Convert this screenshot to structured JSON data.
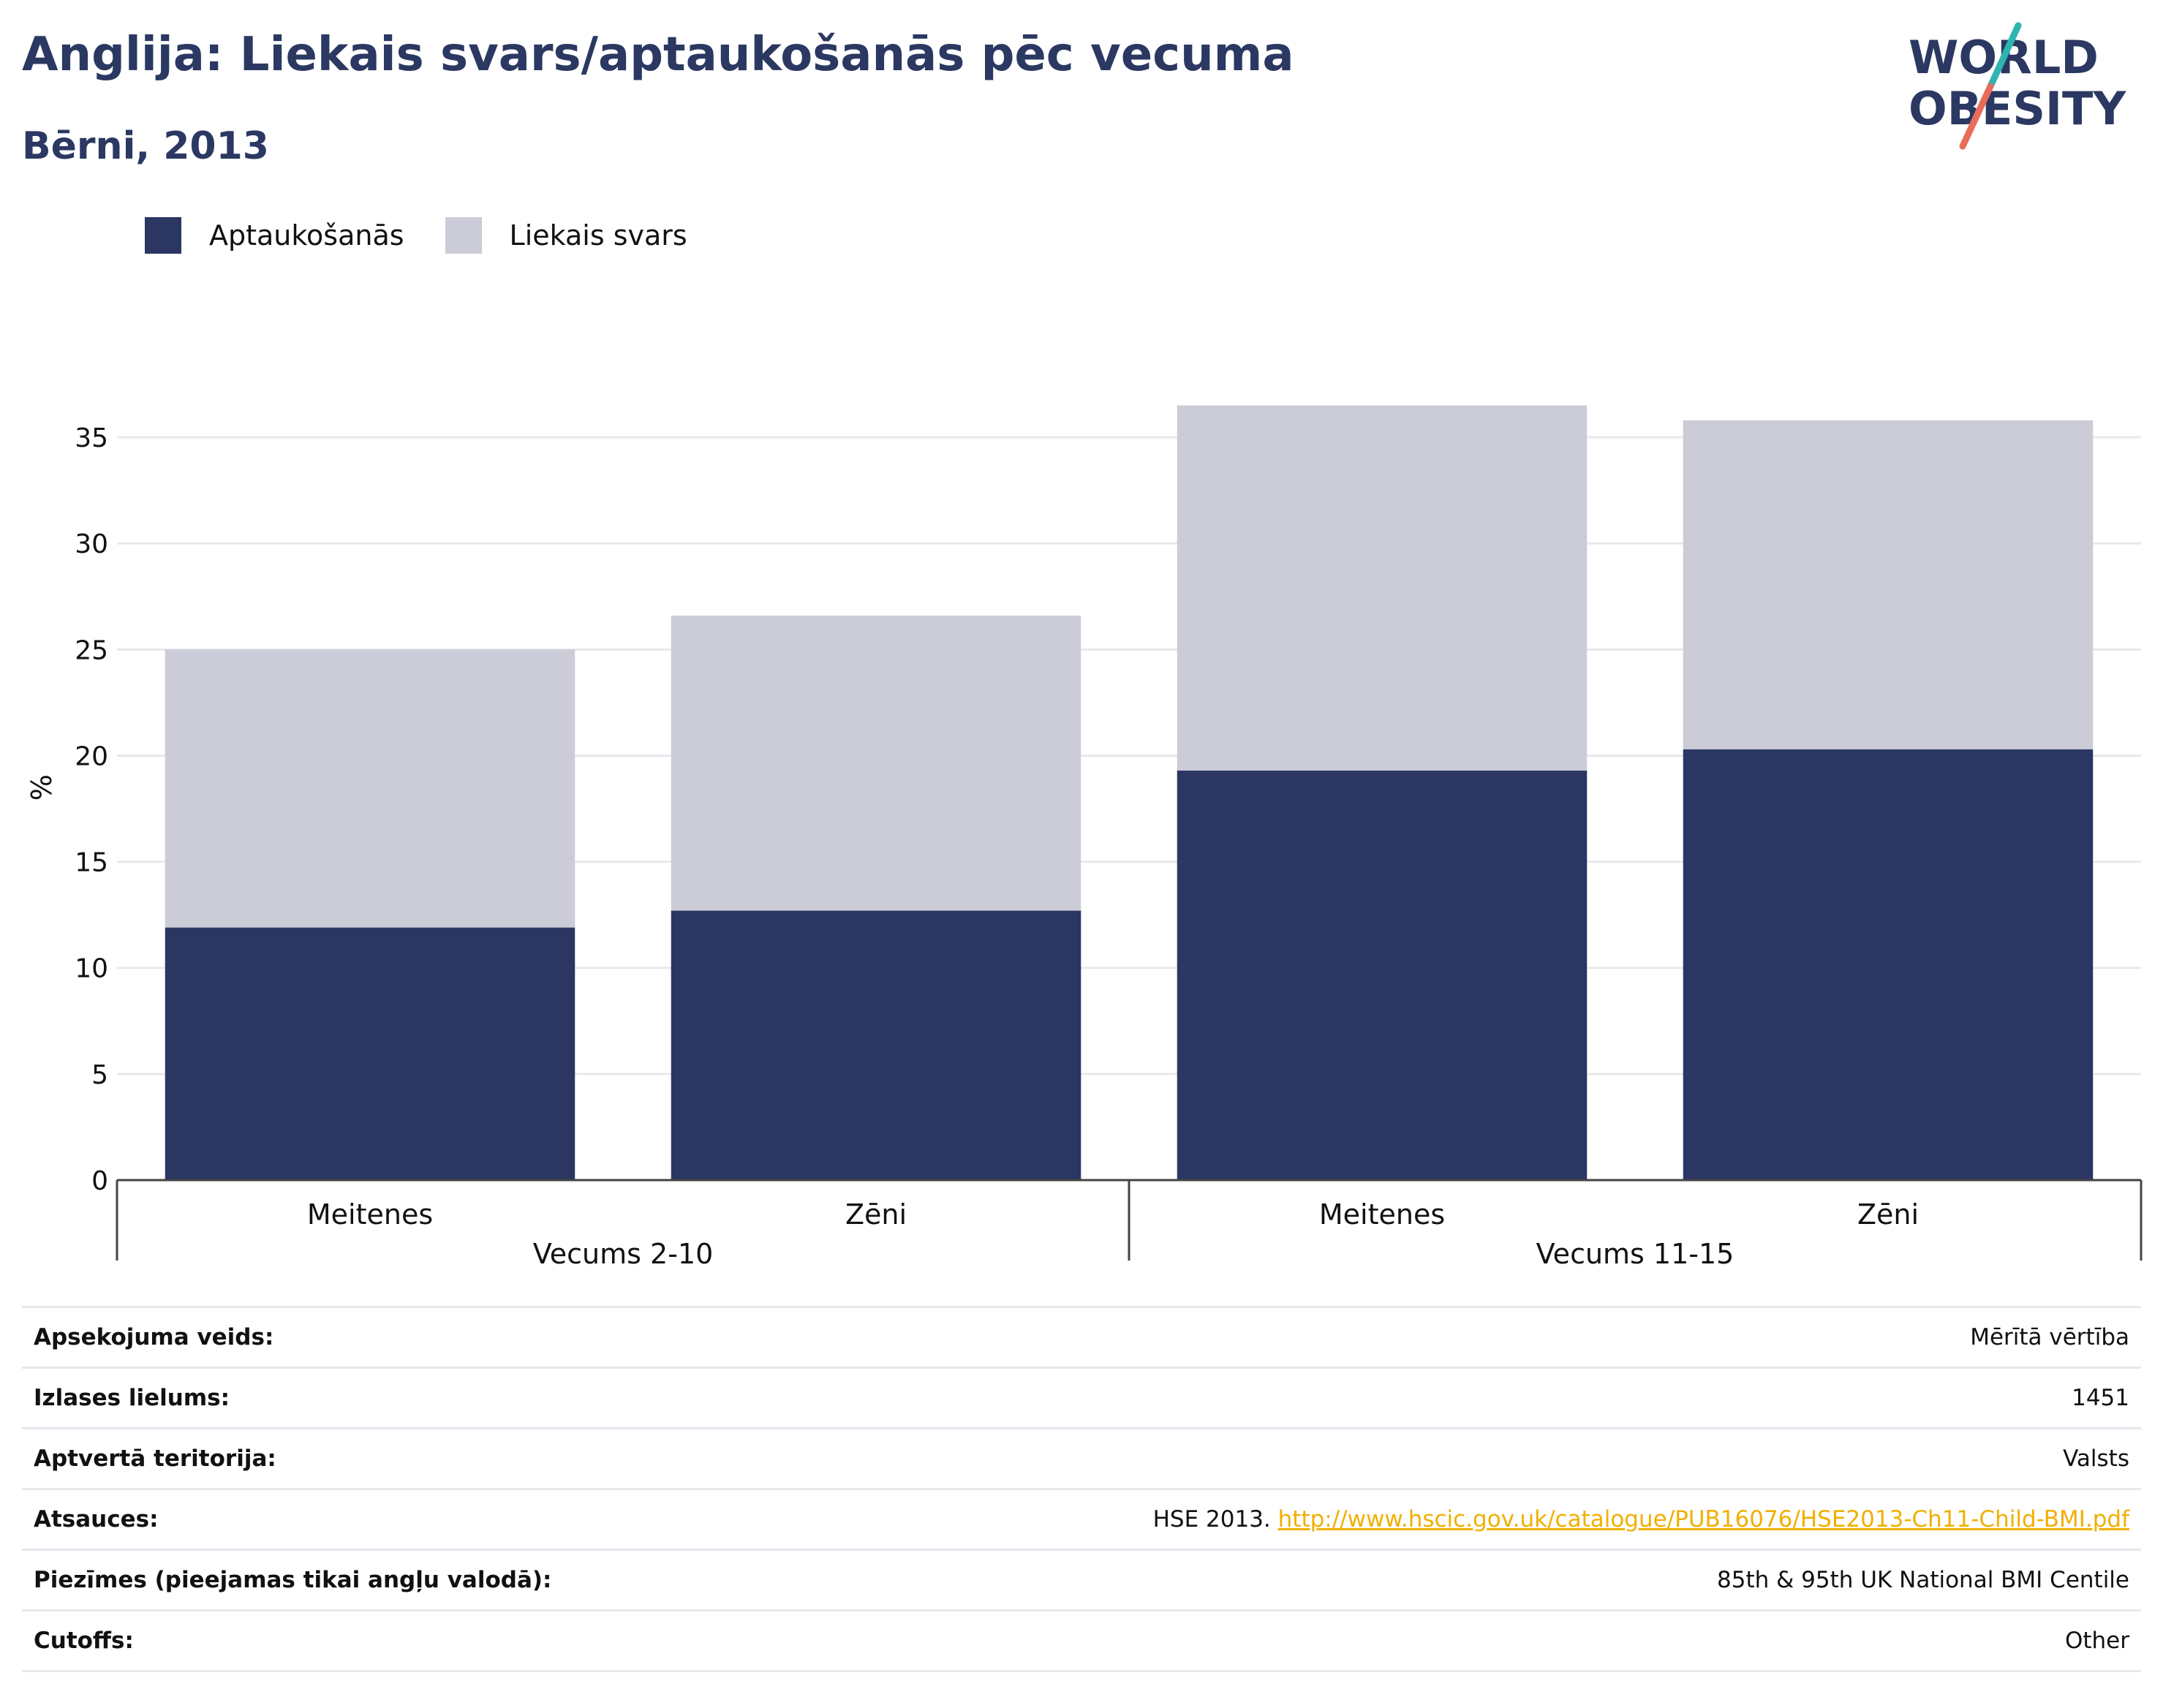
{
  "header": {
    "title": "Anglija: Liekais svars/aptaukošanās pēc vecuma",
    "subtitle": "Bērni, 2013"
  },
  "logo": {
    "line1": "WORLD",
    "line2": "OBESITY"
  },
  "colors": {
    "obesity": "#2b3762",
    "overweight": "#cbccd7",
    "title": "#2b3862",
    "link": "#f0b000"
  },
  "chart_data": {
    "type": "bar",
    "stacked": true,
    "categories": [
      "Meitenes",
      "Zēni",
      "Meitenes",
      "Zēni"
    ],
    "groups": [
      {
        "label": "Vecums 2-10",
        "categories": [
          0,
          1
        ]
      },
      {
        "label": "Vecums 11-15",
        "categories": [
          2,
          3
        ]
      }
    ],
    "series": [
      {
        "name": "Aptaukošanās",
        "values": [
          11.9,
          12.7,
          19.3,
          20.3
        ]
      },
      {
        "name": "Liekais svars",
        "values": [
          13.1,
          13.9,
          17.2,
          15.5
        ]
      }
    ],
    "ylabel": "%",
    "ylim": [
      0,
      37
    ],
    "yticks": [
      0,
      5,
      10,
      15,
      20,
      25,
      30,
      35
    ],
    "grid": true,
    "legend": "top-left"
  },
  "info": {
    "rows": [
      {
        "key": "Apsekojuma veids:",
        "value": "Mērītā vērtība"
      },
      {
        "key": "Izlases lielums:",
        "value": "1451"
      },
      {
        "key": "Aptvertā teritorija:",
        "value": "Valsts"
      },
      {
        "key": "Atsauces:",
        "value": "HSE 2013.",
        "link": "http://www.hscic.gov.uk/catalogue/PUB16076/HSE2013-Ch11-Child-BMI.pdf"
      },
      {
        "key": "Piezīmes (pieejamas tikai angļu valodā):",
        "value": "85th & 95th UK National BMI Centile"
      },
      {
        "key": "Cutoffs:",
        "value": "Other"
      }
    ]
  }
}
